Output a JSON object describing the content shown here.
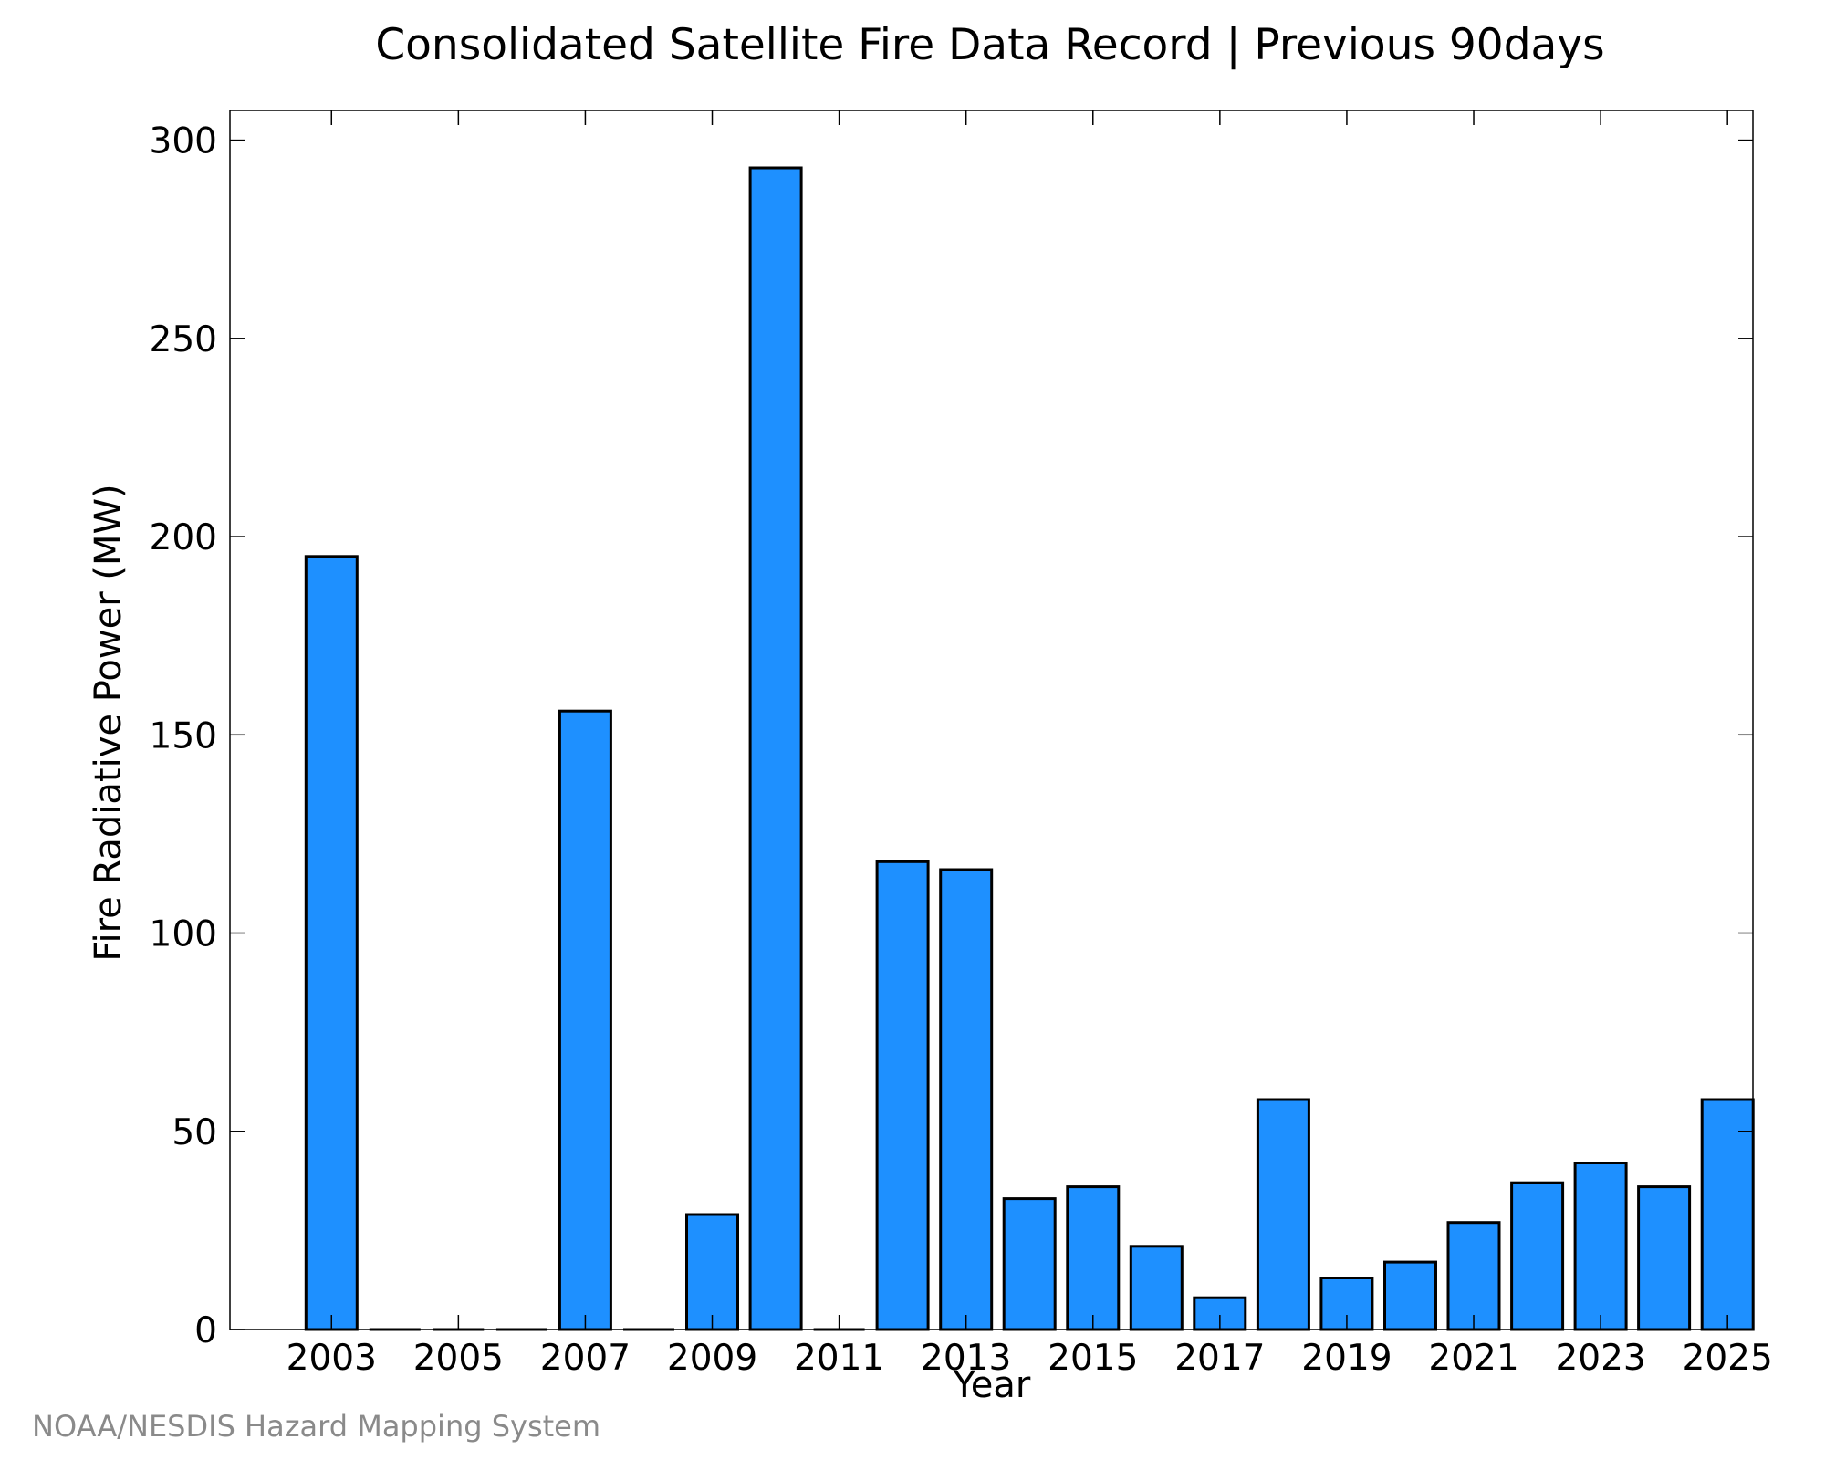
{
  "chart_data": {
    "type": "bar",
    "title": "Consolidated Satellite Fire Data Record | Previous 90days",
    "xlabel": "Year",
    "ylabel": "Fire Radiative Power (MW)",
    "categories": [
      2003,
      2004,
      2005,
      2006,
      2007,
      2008,
      2009,
      2010,
      2011,
      2012,
      2013,
      2014,
      2015,
      2016,
      2017,
      2018,
      2019,
      2020,
      2021,
      2022,
      2023,
      2024,
      2025
    ],
    "values": [
      195,
      0,
      0,
      0,
      156,
      0,
      29,
      293,
      0,
      118,
      116,
      33,
      36,
      21,
      8,
      58,
      13,
      17,
      27,
      37,
      42,
      36,
      58
    ],
    "xticks": [
      "2003",
      "2005",
      "2007",
      "2009",
      "2011",
      "2013",
      "2015",
      "2017",
      "2019",
      "2021",
      "2023",
      "2025"
    ],
    "yticks": [
      "0",
      "50",
      "100",
      "150",
      "200",
      "250",
      "300"
    ],
    "ylim": [
      0,
      307.5
    ],
    "xlim": [
      2001.4,
      2025.4
    ],
    "grid": false,
    "bar_color": "#1e90ff",
    "edge_color": "#000000"
  },
  "footer": {
    "credit": "NOAA/NESDIS Hazard Mapping System"
  }
}
